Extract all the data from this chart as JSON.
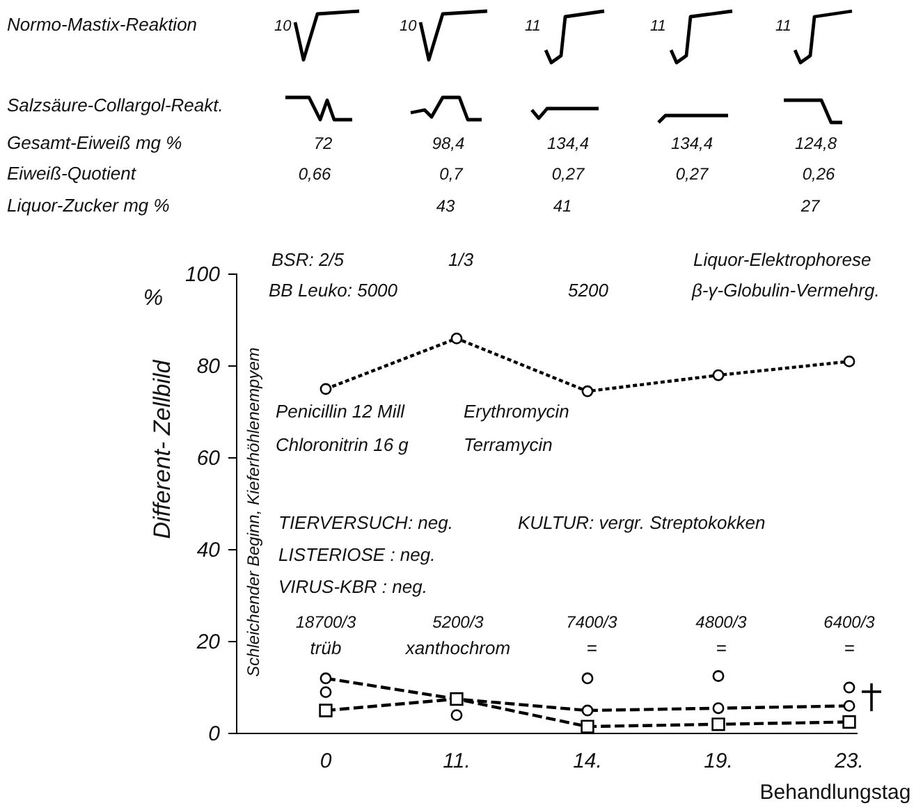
{
  "chart_data": {
    "type": "line",
    "categories": [
      "0",
      "11.",
      "14.",
      "19.",
      "23."
    ],
    "ylim": [
      0,
      100
    ],
    "yticks": [
      0,
      20,
      40,
      60,
      80,
      100
    ],
    "ylabel": "Different- Zellbild",
    "xlabel": "Behandlungstag",
    "series": [
      {
        "color": "#000000",
        "marker": "circle",
        "line_style": "dotted",
        "values": [
          75,
          86,
          74.5,
          78,
          81
        ]
      },
      {
        "color": "#000000",
        "marker": "circle",
        "line_style": "dashed",
        "values": [
          12,
          7.5,
          5,
          5.5,
          6
        ]
      },
      {
        "color": "#000000",
        "marker": "square",
        "line_style": "dashed",
        "values": [
          5,
          7.5,
          1.5,
          2,
          2.5
        ]
      },
      {
        "type": "scatter",
        "color": "#000000",
        "marker": "circle",
        "values": [
          9,
          4,
          12,
          12.5,
          10
        ]
      }
    ],
    "annotations": [
      "Normo-Mastix-Reaktion",
      "10",
      "10",
      "11",
      "11",
      "11",
      "Salzsäure-Collargol-Reakt.",
      "Gesamt-Eiweiß  mg %",
      "72",
      "98,4",
      "134,4",
      "134,4",
      "124,8",
      "Eiweiß-Quotient",
      "0,66",
      "0,7",
      "0,27",
      "0,27",
      "0,26",
      "Liquor-Zucker  mg %",
      "43",
      "41",
      "27",
      "%",
      "BSR: 2/5",
      "1/3",
      "Liquor-Elektrophorese",
      "BB Leuko:  5000",
      "5200",
      "β-γ-Globulin-Vermehrg.",
      "Penicillin 12 Mill",
      "Chloronitrin 16 g",
      "Erythromycin",
      "Terramycin",
      "TIERVERSUCH: neg.",
      "LISTERIOSE   : neg.",
      "VIRUS-KBR   : neg.",
      "KULTUR: vergr. Streptokokken",
      "18700/3",
      "trüb",
      "5200/3",
      "xanthochrom",
      "7400/3",
      "=",
      "4800/3",
      "=",
      "6400/3",
      "=",
      "Schleichender Beginn, Kieferhöhlenempyem"
    ]
  }
}
